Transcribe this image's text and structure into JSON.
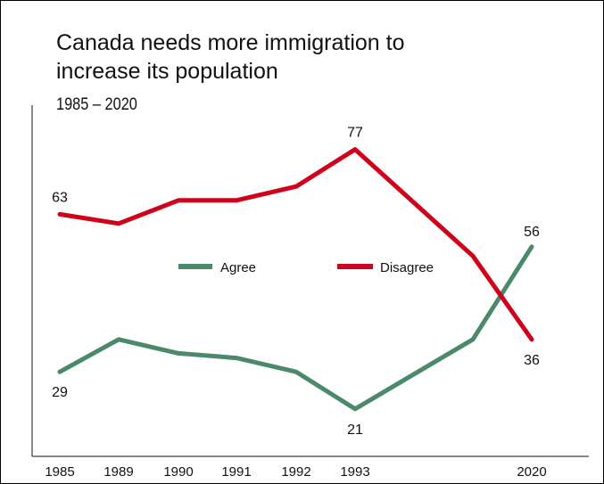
{
  "chart_data": {
    "type": "line",
    "title": "Canada needs more immigration to\nincrease its population",
    "subtitle": "1985 – 2020",
    "categories": [
      "1985",
      "1989",
      "1990",
      "1991",
      "1992",
      "1993",
      "",
      "2020"
    ],
    "x_tick_labels": [
      "1985",
      "1989",
      "1990",
      "1991",
      "1992",
      "1993",
      "2020"
    ],
    "series": [
      {
        "name": "Agree",
        "color": "#4a8a6a",
        "values": [
          29,
          36,
          33,
          32,
          29,
          21,
          36,
          56
        ],
        "point_labels": [
          {
            "index": 0,
            "text": "29"
          },
          {
            "index": 5,
            "text": "21"
          },
          {
            "index": 7,
            "text": "56"
          }
        ]
      },
      {
        "name": "Disagree",
        "color": "#d0021b",
        "values": [
          63,
          61,
          66,
          66,
          69,
          77,
          54,
          36
        ],
        "point_labels": [
          {
            "index": 0,
            "text": "63"
          },
          {
            "index": 5,
            "text": "77"
          },
          {
            "index": 7,
            "text": "36"
          }
        ]
      }
    ],
    "ylim": [
      0,
      100
    ],
    "grid": false,
    "legend_position": "center"
  }
}
